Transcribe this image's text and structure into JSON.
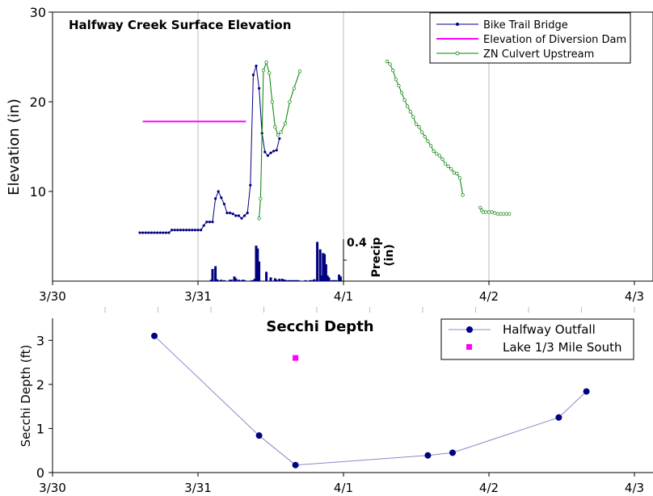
{
  "chart_data": [
    {
      "type": "line",
      "title": "Halfway Creek Surface Elevation",
      "ylabel": "Elevation (in)",
      "xlabel": "",
      "xlim": [
        0,
        4
      ],
      "ylim": [
        0,
        30
      ],
      "x_tick_labels": [
        "3/30",
        "3/31",
        "4/1",
        "4/2",
        "4/3"
      ],
      "y_ticks": [
        10,
        20,
        30
      ],
      "grid": "vertical only",
      "legend_position": "top-right",
      "colors": {
        "bike": "#000080",
        "dam": "#ff00ff",
        "culvert": "#008000",
        "precip": "#000080",
        "grid": "#bbbbbb"
      },
      "series": [
        {
          "name": "Bike Trail Bridge",
          "style": "line-with-dots",
          "x": [
            0.6,
            0.62,
            0.64,
            0.66,
            0.68,
            0.7,
            0.72,
            0.74,
            0.76,
            0.78,
            0.8,
            0.82,
            0.84,
            0.86,
            0.88,
            0.9,
            0.92,
            0.94,
            0.96,
            0.98,
            1.0,
            1.02,
            1.04,
            1.06,
            1.08,
            1.1,
            1.12,
            1.14,
            1.16,
            1.18,
            1.2,
            1.22,
            1.24,
            1.26,
            1.28,
            1.3,
            1.32,
            1.34,
            1.36,
            1.38,
            1.4,
            1.42,
            1.44,
            1.46,
            1.48,
            1.5,
            1.52,
            1.54,
            1.56,
            1.58,
            1.6
          ],
          "y": [
            5.4,
            5.4,
            5.4,
            5.4,
            5.4,
            5.4,
            5.4,
            5.4,
            5.4,
            5.4,
            5.4,
            5.7,
            5.7,
            5.7,
            5.7,
            5.7,
            5.7,
            5.7,
            5.7,
            5.7,
            5.7,
            5.7,
            6.2,
            6.6,
            6.6,
            6.6,
            9.2,
            10.0,
            9.3,
            8.6,
            7.6,
            7.6,
            7.5,
            7.3,
            7.3,
            7.0,
            7.3,
            7.6,
            10.7,
            23.0,
            24.0,
            21.5,
            16.5,
            14.4,
            14.0,
            14.3,
            14.5,
            14.6,
            15.9,
            null,
            null
          ]
        },
        {
          "name": "Elevation of Diversion Dam",
          "style": "line",
          "x": [
            0.62,
            1.33
          ],
          "y": [
            17.8,
            17.8
          ]
        },
        {
          "name": "ZN Culvert Upstream",
          "style": "line-with-open-dots",
          "segments": [
            {
              "x": [
                1.42,
                1.43,
                1.45,
                1.47,
                1.49,
                1.51,
                1.53,
                1.55,
                1.57,
                1.6,
                1.63,
                1.66,
                1.7
              ],
              "y": [
                7.0,
                9.2,
                23.5,
                24.4,
                23.2,
                20.0,
                17.2,
                16.3,
                16.6,
                17.6,
                20.0,
                21.5,
                23.4
              ]
            },
            {
              "x": [
                2.3,
                2.32,
                2.34,
                2.36,
                2.38,
                2.4,
                2.42,
                2.44,
                2.46,
                2.48,
                2.5,
                2.52,
                2.54,
                2.56,
                2.58,
                2.6,
                2.62,
                2.64,
                2.66,
                2.68,
                2.7,
                2.72,
                2.74,
                2.76,
                2.78,
                2.8,
                2.82
              ],
              "y": [
                24.5,
                24.2,
                23.5,
                22.5,
                21.8,
                21.0,
                20.2,
                19.5,
                18.9,
                18.3,
                17.5,
                17.2,
                16.6,
                16.1,
                15.6,
                15.1,
                14.5,
                14.2,
                14.0,
                13.6,
                13.1,
                12.8,
                12.5,
                12.1,
                12.0,
                11.5,
                9.6
              ]
            },
            {
              "x": [
                2.94,
                2.95,
                2.96,
                2.98,
                3.0,
                3.02,
                3.04,
                3.06,
                3.08,
                3.1,
                3.12,
                3.14
              ],
              "y": [
                8.2,
                7.9,
                7.7,
                7.7,
                7.7,
                7.7,
                7.6,
                7.5,
                7.5,
                7.5,
                7.5,
                7.5
              ]
            }
          ]
        }
      ],
      "precip_axis": {
        "label": "Precip (in)",
        "tick_label": "0.4",
        "max": 0.45,
        "bars_x": [
          1.09,
          1.1,
          1.12,
          1.13,
          1.14,
          1.16,
          1.18,
          1.22,
          1.23,
          1.25,
          1.26,
          1.28,
          1.3,
          1.31,
          1.32,
          1.37,
          1.38,
          1.39,
          1.4,
          1.41,
          1.42,
          1.47,
          1.5,
          1.53,
          1.54,
          1.56,
          1.58,
          1.59,
          1.6,
          1.62,
          1.63,
          1.64,
          1.65,
          1.66,
          1.67,
          1.68,
          1.69,
          1.74,
          1.77,
          1.78,
          1.79,
          1.8,
          1.82,
          1.84,
          1.85,
          1.86,
          1.87,
          1.88,
          1.89,
          1.9,
          1.92,
          1.93,
          1.94,
          1.95,
          1.97,
          1.98
        ],
        "bars_values": [
          0.015,
          0.13,
          0.16,
          0.02,
          0.01,
          0.015,
          0.01,
          0.015,
          0.015,
          0.05,
          0.03,
          0.015,
          0.01,
          0.015,
          0.01,
          0.01,
          0.01,
          0.025,
          0.38,
          0.35,
          0.21,
          0.1,
          0.04,
          0.03,
          0.015,
          0.025,
          0.025,
          0.015,
          0.015,
          0.01,
          0.01,
          0.01,
          0.01,
          0.01,
          0.01,
          0.01,
          0.01,
          0.01,
          0.01,
          0.01,
          0.01,
          0.02,
          0.42,
          0.34,
          0.06,
          0.3,
          0.29,
          0.18,
          0.06,
          0.04,
          0.01,
          0.01,
          0.01,
          0.01,
          0.07,
          0.05
        ]
      }
    },
    {
      "type": "scatter",
      "title": "Secchi Depth",
      "ylabel": "Secchi Depth (ft)",
      "xlabel": "",
      "xlim": [
        0,
        4
      ],
      "ylim": [
        0,
        3.5
      ],
      "x_tick_labels": [
        "3/30",
        "3/31",
        "4/1",
        "4/2",
        "4/3"
      ],
      "y_ticks": [
        0,
        1,
        2,
        3
      ],
      "grid": "none",
      "legend_position": "top-right",
      "colors": {
        "outfall": "#000080",
        "lake": "#ff00ff",
        "line": "#8888cc"
      },
      "series": [
        {
          "name": "Halfway Outfall",
          "style": "line-with-dots",
          "x": [
            0.7,
            1.42,
            1.67,
            2.58,
            2.75,
            3.48,
            3.67
          ],
          "y": [
            3.1,
            0.84,
            0.17,
            0.39,
            0.45,
            1.25,
            1.84
          ]
        },
        {
          "name": "Lake 1/3 Mile South",
          "style": "square-marker",
          "x": [
            1.67
          ],
          "y": [
            2.6
          ]
        }
      ]
    }
  ]
}
